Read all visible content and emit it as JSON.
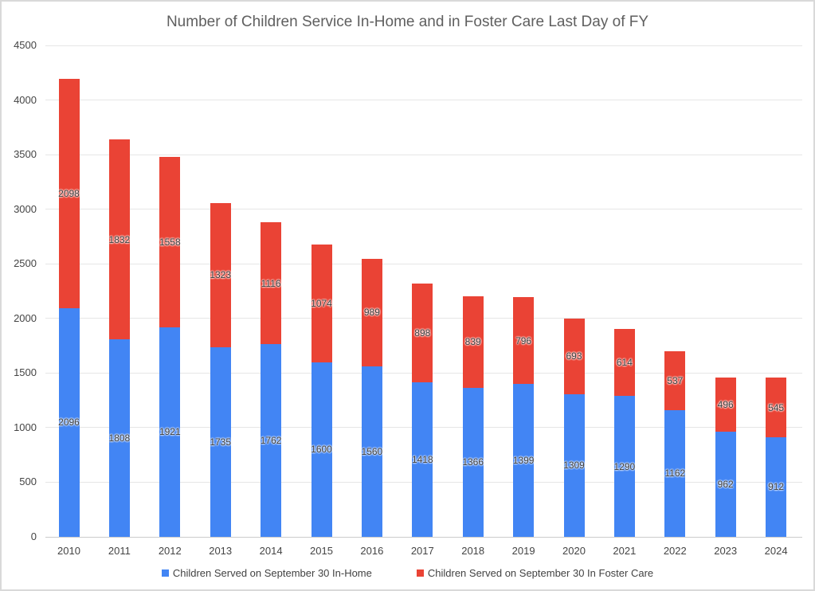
{
  "title": "Number of Children Service In-Home and in Foster Care Last Day of FY",
  "chart_data": {
    "type": "bar",
    "stacked": true,
    "title": "Number of Children Service In-Home and in Foster Care Last Day of FY",
    "categories": [
      "2010",
      "2011",
      "2012",
      "2013",
      "2014",
      "2015",
      "2016",
      "2017",
      "2018",
      "2019",
      "2020",
      "2021",
      "2022",
      "2023",
      "2024"
    ],
    "series": [
      {
        "name": "Children Served on September 30 In-Home",
        "color": "#4285F4",
        "values": [
          2096,
          1808,
          1921,
          1735,
          1762,
          1600,
          1560,
          1418,
          1366,
          1399,
          1309,
          1290,
          1162,
          962,
          912
        ]
      },
      {
        "name": "Children Served on September 30 In Foster Care",
        "color": "#EA4335",
        "values": [
          2098,
          1832,
          1558,
          1323,
          1116,
          1074,
          989,
          898,
          839,
          796,
          693,
          614,
          537,
          496,
          545
        ]
      }
    ],
    "xlabel": "",
    "ylabel": "",
    "ylim": [
      0,
      4500
    ],
    "yticks": [
      0,
      500,
      1000,
      1500,
      2000,
      2500,
      3000,
      3500,
      4000,
      4500
    ],
    "grid": true,
    "legend_position": "bottom",
    "data_labels": true,
    "colors": {
      "in_home": "#4285F4",
      "foster_care": "#EA4335"
    }
  }
}
